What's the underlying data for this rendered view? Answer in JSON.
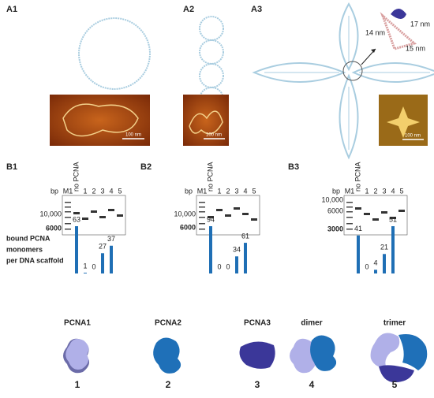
{
  "panels_a": [
    {
      "label": "A1",
      "scale_bar": "100 nm"
    },
    {
      "label": "A2",
      "scale_bar": "100 nm"
    },
    {
      "label": "A3",
      "scale_bar": "100 nm",
      "dimensions": [
        "17 nm",
        "14 nm",
        "15 nm"
      ]
    }
  ],
  "bp_label": "bp",
  "lane_labels": [
    "M1",
    "no PCNA",
    "1",
    "2",
    "3",
    "4",
    "5"
  ],
  "ylabel_lines": [
    "bound PCNA",
    "monomers",
    "per DNA scaffold"
  ],
  "gels": [
    {
      "label": "B1",
      "markers": [
        "10,000",
        "6000"
      ],
      "values": [
        63,
        1,
        0,
        27,
        37
      ],
      "color": "#1f6fb5"
    },
    {
      "label": "B2",
      "markers": [
        "10,000",
        "6000"
      ],
      "values": [
        94,
        0,
        0,
        34,
        61
      ],
      "color": "#1f6fb5"
    },
    {
      "label": "B3",
      "markers": [
        "10,000",
        "6000",
        "3000"
      ],
      "values": [
        41,
        0,
        4,
        21,
        51
      ],
      "color": "#1f6fb5"
    }
  ],
  "proteins": [
    {
      "name": "PCNA1",
      "number": "1"
    },
    {
      "name": "PCNA2",
      "number": "2"
    },
    {
      "name": "PCNA3",
      "number": "3"
    },
    {
      "name": "dimer",
      "number": "4"
    },
    {
      "name": "trimer",
      "number": "5"
    }
  ]
}
